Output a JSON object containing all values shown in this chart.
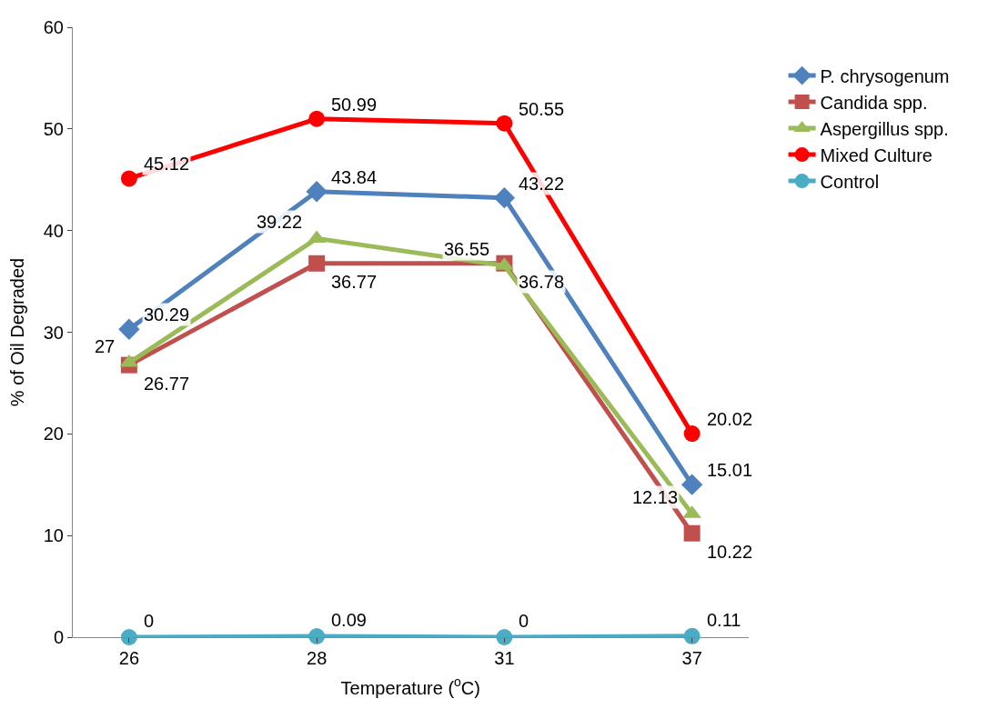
{
  "chart_data": {
    "type": "line",
    "xlabel": "Temperature ($^{o}$C)",
    "ylabel": "% of Oil Degraded",
    "categories": [
      "26",
      "28",
      "31",
      "37"
    ],
    "series": [
      {
        "name": "P. chrysogenum",
        "color": "#4f81bd",
        "marker": "diamond",
        "values": [
          30.29,
          43.84,
          43.22,
          15.01
        ]
      },
      {
        "name": "Candida spp.",
        "color": "#c0504d",
        "marker": "square",
        "values": [
          26.77,
          36.77,
          36.78,
          10.22
        ]
      },
      {
        "name": "Aspergillus spp.",
        "color": "#9bbb59",
        "marker": "triangle",
        "values": [
          27,
          39.22,
          36.55,
          12.13
        ]
      },
      {
        "name": "Mixed Culture",
        "color": "#ff0000",
        "marker": "circle",
        "values": [
          45.12,
          50.99,
          50.55,
          20.02
        ]
      },
      {
        "name": "Control",
        "color": "#4bacc6",
        "marker": "circle",
        "values": [
          0,
          0.09,
          0,
          0.11
        ]
      }
    ],
    "ylim": [
      0,
      60
    ],
    "yticks": [
      0,
      10,
      20,
      30,
      40,
      50,
      60
    ],
    "grid": false,
    "legend": "right",
    "data_labels": true,
    "line_style": "solid"
  }
}
